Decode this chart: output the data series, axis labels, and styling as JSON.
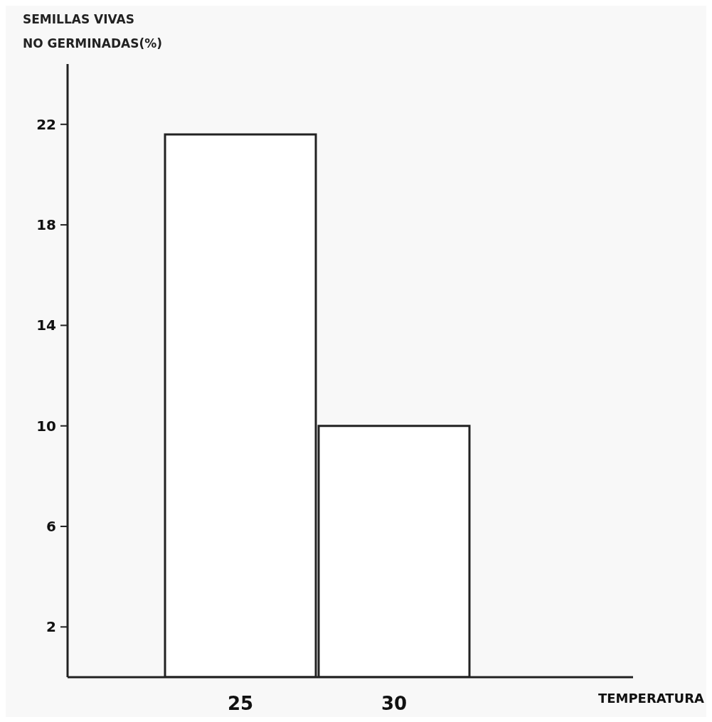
{
  "chart_data": {
    "type": "bar",
    "ylabel": "SEMILLAS VIVAS\nNO GERMINADAS(%)",
    "annotations": [
      "TEMPERATURA"
    ],
    "categories": [
      "25",
      "30"
    ],
    "values": [
      21.6,
      10
    ],
    "color": "#ffffff",
    "ylim": [
      0,
      24.4
    ],
    "yticks": [
      2,
      6,
      10,
      14,
      18,
      22
    ],
    "grid": false,
    "legend": false
  }
}
